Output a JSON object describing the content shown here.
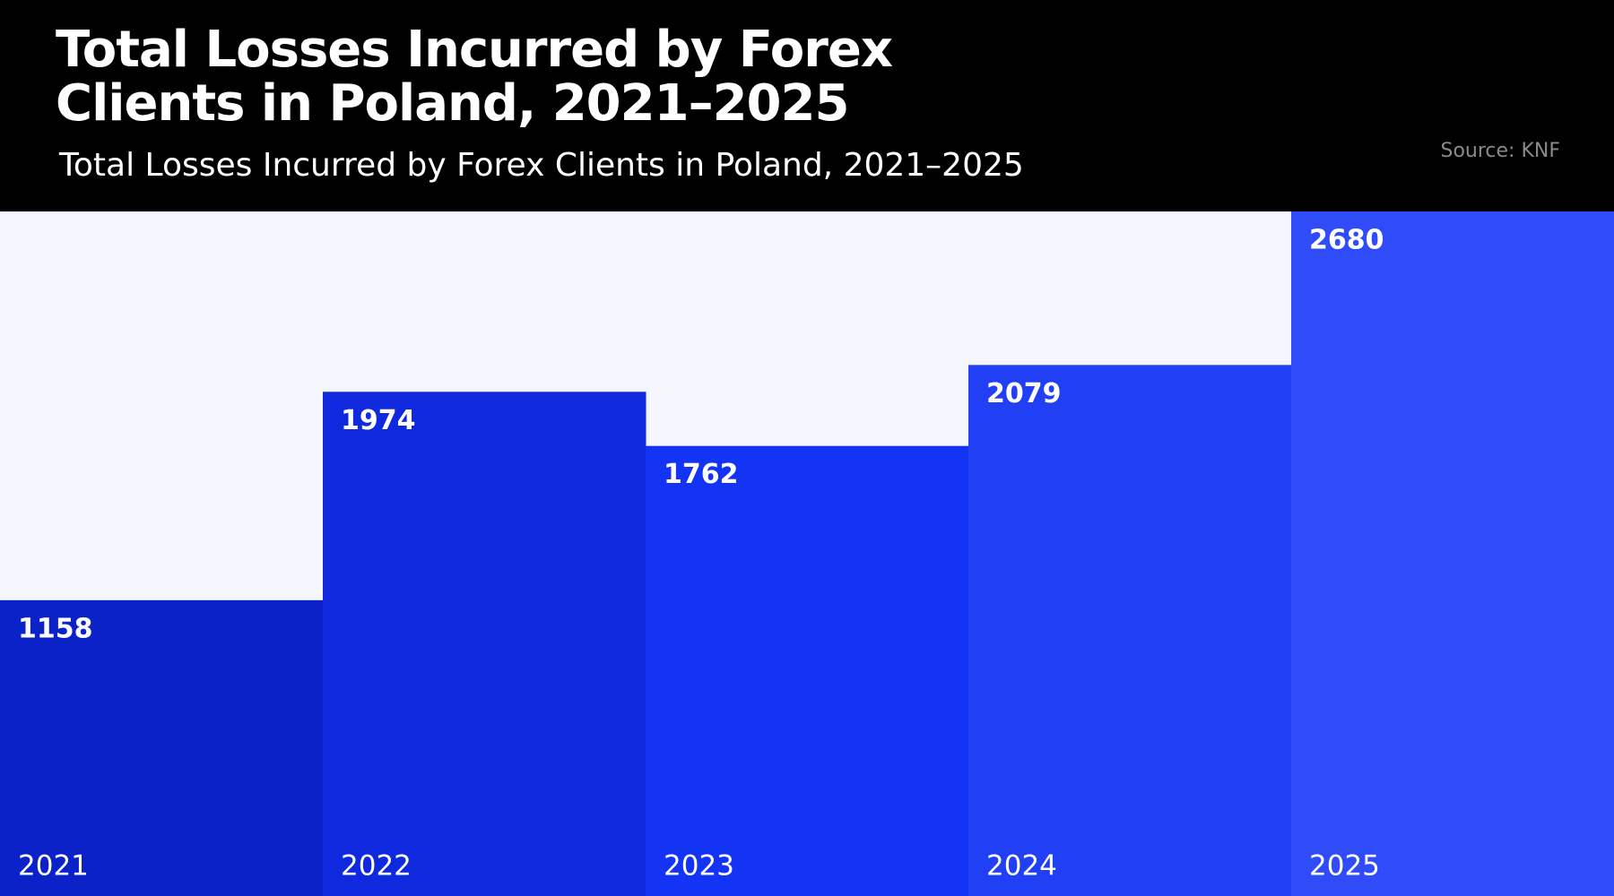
{
  "chart_data": {
    "type": "bar",
    "title": "Total Losses Incurred by Forex Clients in Poland, 2021–2025",
    "subtitle": "Total Losses Incurred by Forex Clients in Poland, 2021–2025",
    "source": "Source: KNF",
    "categories": [
      "2021",
      "2022",
      "2023",
      "2024",
      "2025"
    ],
    "values": [
      1158,
      1974,
      1762,
      2079,
      2680
    ],
    "colors": [
      "#0c22c9",
      "#1029de",
      "#1434f5",
      "#2140f6",
      "#2f4cf8"
    ]
  }
}
